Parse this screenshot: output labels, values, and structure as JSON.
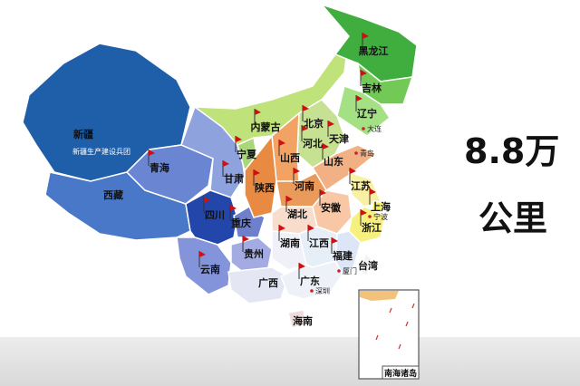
{
  "headline": {
    "value": "8.8万",
    "unit": "公里"
  },
  "provinces": [
    {
      "name": "新疆",
      "color": "#1f5fa9"
    },
    {
      "name": "西藏",
      "color": "#4a78c9"
    },
    {
      "name": "青海",
      "color": "#6a86d2"
    },
    {
      "name": "甘肃",
      "color": "#8ea2dd"
    },
    {
      "name": "四川",
      "color": "#2346aa"
    },
    {
      "name": "云南",
      "color": "#8494da"
    },
    {
      "name": "贵州",
      "color": "#a4abe2"
    },
    {
      "name": "重庆",
      "color": "#6e80cc"
    },
    {
      "name": "广西",
      "color": "#e4e6f4"
    },
    {
      "name": "宁夏",
      "color": "#a9d87a"
    },
    {
      "name": "内蒙古",
      "color": "#bfe27a"
    },
    {
      "name": "黑龙江",
      "color": "#3fae3f"
    },
    {
      "name": "吉林",
      "color": "#72c955"
    },
    {
      "name": "辽宁",
      "color": "#a4e184"
    },
    {
      "name": "北京",
      "color": "#c9e49a"
    },
    {
      "name": "天津",
      "color": "#b8dc88"
    },
    {
      "name": "河北",
      "color": "#c7e192"
    },
    {
      "name": "山西",
      "color": "#f2a364"
    },
    {
      "name": "陕西",
      "color": "#e88a42"
    },
    {
      "name": "河南",
      "color": "#ea9a5a"
    },
    {
      "name": "山东",
      "color": "#f2b184"
    },
    {
      "name": "湖北",
      "color": "#f8dccc"
    },
    {
      "name": "安徽",
      "color": "#f7c7a6"
    },
    {
      "name": "江苏",
      "color": "#f8f0a2"
    },
    {
      "name": "上海",
      "color": "#f0ee5c"
    },
    {
      "name": "浙江",
      "color": "#f6f07e"
    },
    {
      "name": "湖南",
      "color": "#eff0f8"
    },
    {
      "name": "江西",
      "color": "#e6eef8"
    },
    {
      "name": "福建",
      "color": "#dde6f7"
    },
    {
      "name": "广东",
      "color": "#eef2f8"
    },
    {
      "name": "海南",
      "color": "#f0dcdc"
    },
    {
      "name": "台湾",
      "color": "#f2f2f2"
    }
  ],
  "sub_label": "新疆生产建设兵团",
  "cities": [
    "大连",
    "青岛",
    "宁波",
    "厦门",
    "深圳"
  ],
  "inset_label": "南海诸岛",
  "flag_color": "#cc1111"
}
